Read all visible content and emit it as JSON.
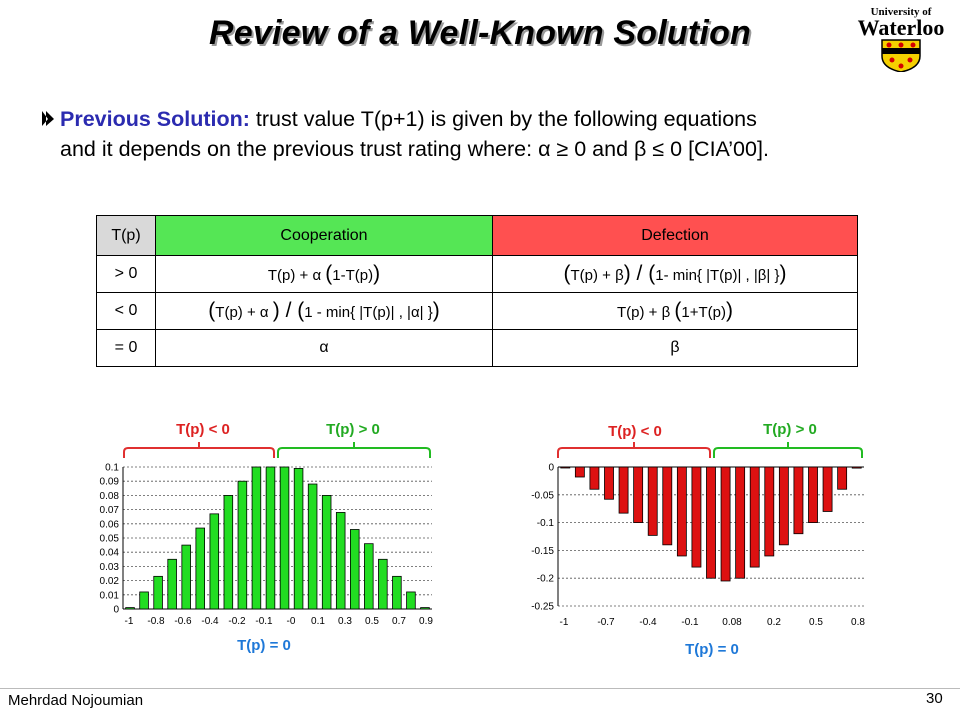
{
  "slide": {
    "title": "Review of a Well-Known Solution",
    "logo": {
      "line1": "University of",
      "line2": "Waterloo"
    },
    "bullet": {
      "head": "Previous Solution:",
      "line1_rest": "trust value T(p+1) is given by the following equations",
      "line2": "and it depends on the previous trust rating where: α ≥ 0 and β ≤ 0 [CIA’00]."
    },
    "footer": {
      "author": "Mehrdad Nojoumian",
      "page": "30"
    }
  },
  "table": {
    "headers": [
      "T(p)",
      "Cooperation",
      "Defection"
    ],
    "rows": [
      {
        "cond": "> 0",
        "coop": [
          "T(p) + α ",
          "(",
          "1-T(p)",
          ")"
        ],
        "defc": [
          "(",
          "T(p) + β",
          ")",
          " / ",
          "(",
          "1- min{ |T(p)| , |β| }",
          ")"
        ]
      },
      {
        "cond": "< 0",
        "coop": [
          "(",
          "T(p) + α ",
          ")",
          " / ",
          "(",
          "1 - min{ |T(p)| , |α| }",
          ")"
        ],
        "defc": [
          "T(p) + β ",
          "(",
          "1+T(p)",
          ")"
        ]
      },
      {
        "cond": "= 0",
        "coop": "α",
        "defc": "β"
      }
    ]
  },
  "annotations": {
    "left": {
      "neg": "T(p) < 0",
      "pos": "T(p) > 0",
      "zero": "T(p) = 0"
    },
    "right": {
      "neg": "T(p) < 0",
      "pos": "T(p) > 0",
      "zero": "T(p) = 0"
    }
  },
  "colors": {
    "green_bar": "#22dd22",
    "red_bar": "#dd1111",
    "red_bracket": "#e03030",
    "green_bracket": "#22bb22",
    "label_blue": "#1e78d8",
    "label_red": "#dd2222",
    "label_green": "#22aa22"
  },
  "chart_data": [
    {
      "type": "bar",
      "x": [
        -1,
        -0.9,
        -0.8,
        -0.7,
        -0.6,
        -0.5,
        -0.4,
        -0.3,
        -0.2,
        -0.1,
        0,
        0,
        0.1,
        0.2,
        0.3,
        0.4,
        0.5,
        0.6,
        0.7,
        0.8,
        0.9,
        1
      ],
      "values": [
        0.001,
        0.012,
        0.023,
        0.035,
        0.045,
        0.057,
        0.067,
        0.08,
        0.09,
        0.1,
        0.1,
        0.1,
        0.099,
        0.088,
        0.08,
        0.068,
        0.056,
        0.046,
        0.035,
        0.023,
        0.012,
        0.001
      ],
      "tick_labels": [
        "-1",
        "-0.8",
        "-0.6",
        "-0.4",
        "-0.2",
        "-0.1",
        "-0",
        "0.1",
        "0.3",
        "0.5",
        "0.7",
        "0.9"
      ],
      "y_ticks": [
        "0",
        "0.01",
        "0.02",
        "0.03",
        "0.04",
        "0.05",
        "0.06",
        "0.07",
        "0.08",
        "0.09",
        "0.1"
      ],
      "ylim": [
        0,
        0.1
      ],
      "grid": true
    },
    {
      "type": "bar",
      "x": [
        -1,
        -0.9,
        -0.8,
        -0.7,
        -0.6,
        -0.5,
        -0.4,
        -0.3,
        -0.2,
        -0.1,
        0.08,
        0.1,
        0.2,
        0.3,
        0.4,
        0.5,
        0.6,
        0.7,
        0.8,
        0.9,
        1
      ],
      "values": [
        -0.001,
        -0.018,
        -0.04,
        -0.058,
        -0.083,
        -0.1,
        -0.123,
        -0.14,
        -0.16,
        -0.18,
        -0.2,
        -0.205,
        -0.2,
        -0.18,
        -0.16,
        -0.14,
        -0.12,
        -0.1,
        -0.08,
        -0.04,
        -0.002
      ],
      "tick_labels": [
        "-1",
        "-0.7",
        "-0.4",
        "-0.1",
        "0.08",
        "0.2",
        "0.5",
        "0.8"
      ],
      "y_ticks": [
        "0",
        "-0.05",
        "-0.1",
        "-0.15",
        "-0.2",
        "-0.25"
      ],
      "ylim": [
        -0.25,
        0
      ],
      "grid": true
    }
  ]
}
